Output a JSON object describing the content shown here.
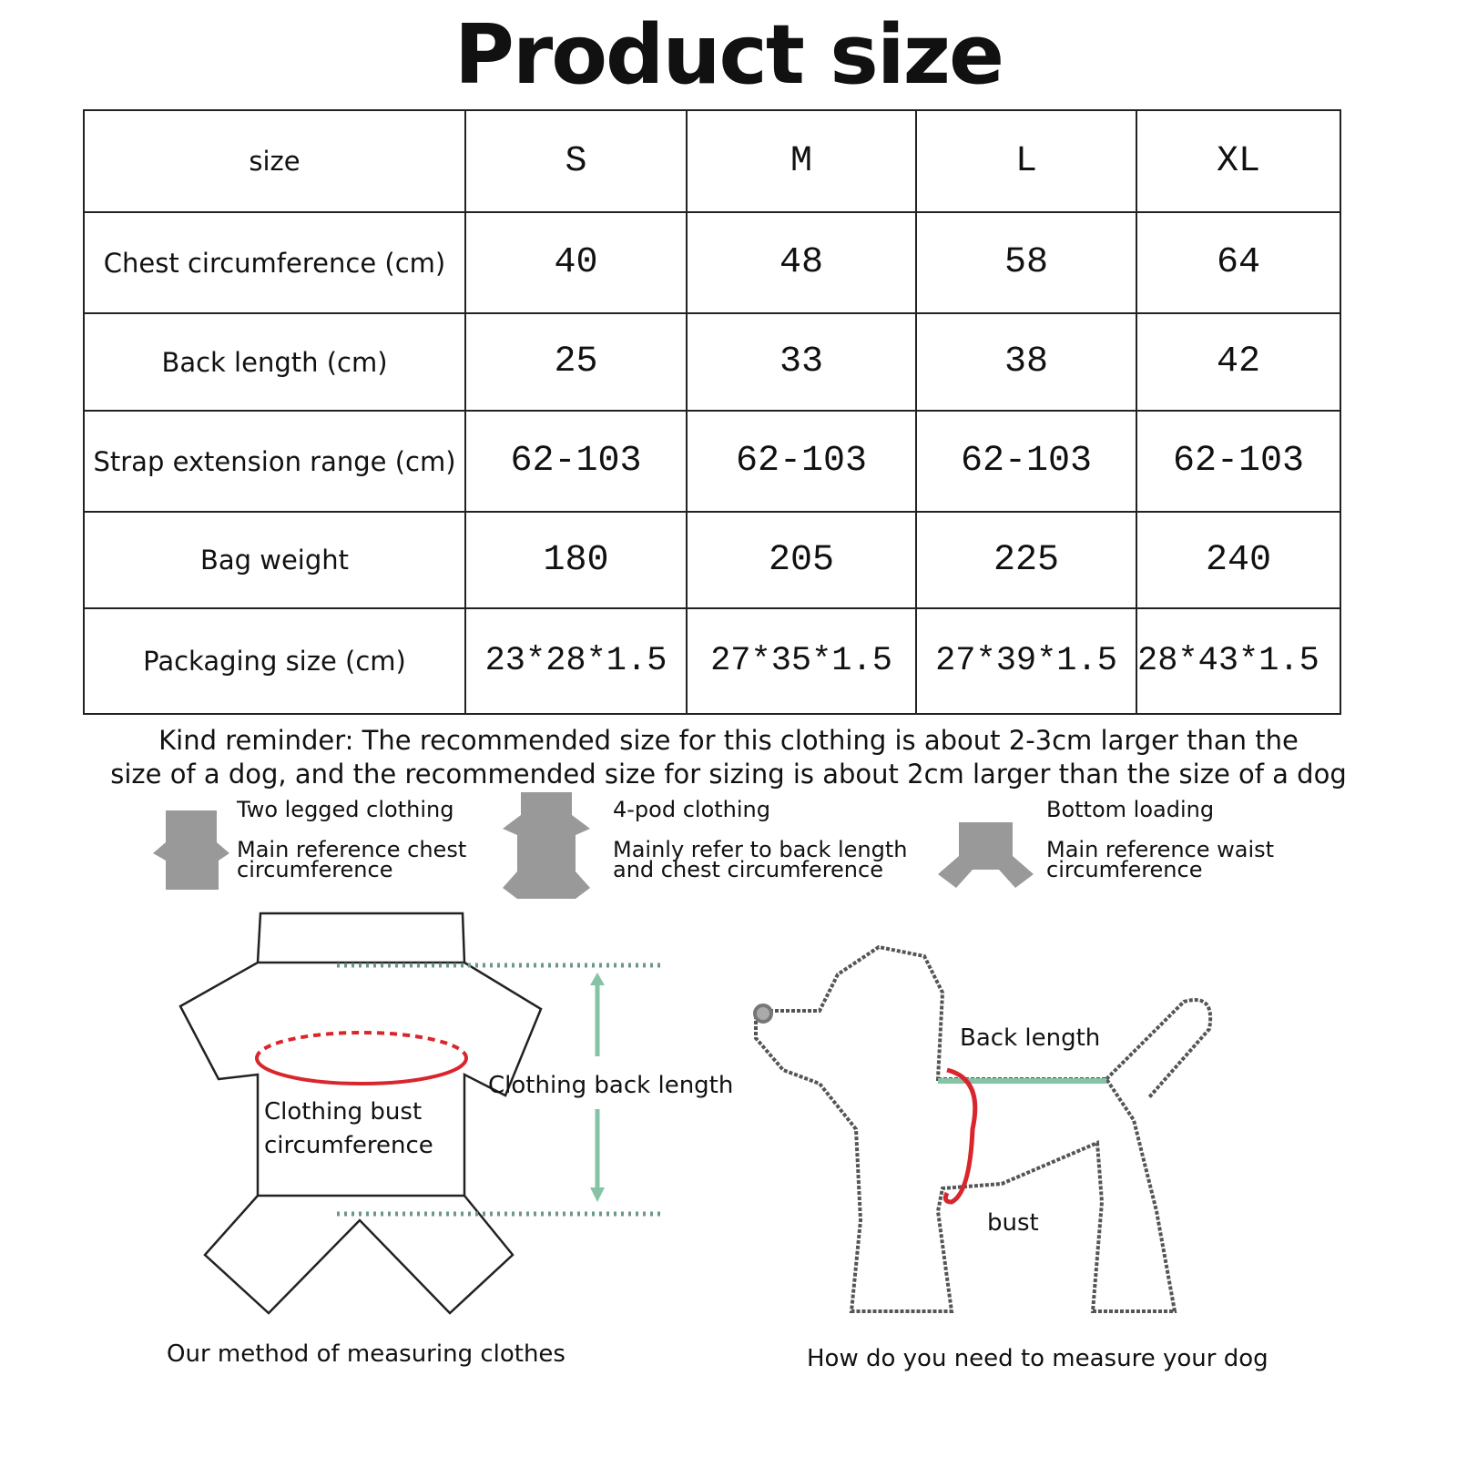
{
  "title": "Product size",
  "table": {
    "header": {
      "label": "size",
      "sizes": [
        "S",
        "M",
        "L",
        "XL"
      ]
    },
    "rows": [
      {
        "label": "Chest circumference (cm)",
        "values": [
          "40",
          "48",
          "58",
          "64"
        ]
      },
      {
        "label": "Back length (cm)",
        "values": [
          "25",
          "33",
          "38",
          "42"
        ]
      },
      {
        "label": "Strap extension range (cm)",
        "values": [
          "62-103",
          "62-103",
          "62-103",
          "62-103"
        ]
      },
      {
        "label": "Bag weight",
        "values": [
          "180",
          "205",
          "225",
          "240"
        ]
      },
      {
        "label": "Packaging size (cm)",
        "values": [
          "23*28*1.5",
          "27*35*1.5",
          "27*39*1.5",
          "28*43*1.5"
        ]
      }
    ]
  },
  "reminder": {
    "line1": "Kind reminder: The recommended size for this clothing is about 2-3cm larger than the",
    "line2": "size of a dog, and the recommended size for sizing is about 2cm larger than the size of a dog"
  },
  "types": [
    {
      "icon": "two-legged-clothing-icon",
      "title": "Two legged clothing",
      "desc1": "Main reference chest",
      "desc2": "circumference"
    },
    {
      "icon": "four-legged-clothing-icon",
      "title": "4-pod clothing",
      "desc1": "Mainly refer to back length",
      "desc2": "and chest circumference"
    },
    {
      "icon": "bottom-loading-icon",
      "title": "Bottom loading",
      "desc1": "Main reference waist",
      "desc2": "circumference"
    }
  ],
  "clothes_diagram": {
    "bust_label_1": "Clothing bust",
    "bust_label_2": "circumference",
    "back_length_label": "Clothing back length",
    "caption": "Our method of measuring clothes"
  },
  "dog_diagram": {
    "back_length_label": "Back length",
    "bust_label": "bust",
    "caption": "How do you need to measure your dog"
  },
  "colors": {
    "icon_gray": "#999999",
    "measure_red": "#d9262c",
    "measure_green": "#86c3a6"
  }
}
